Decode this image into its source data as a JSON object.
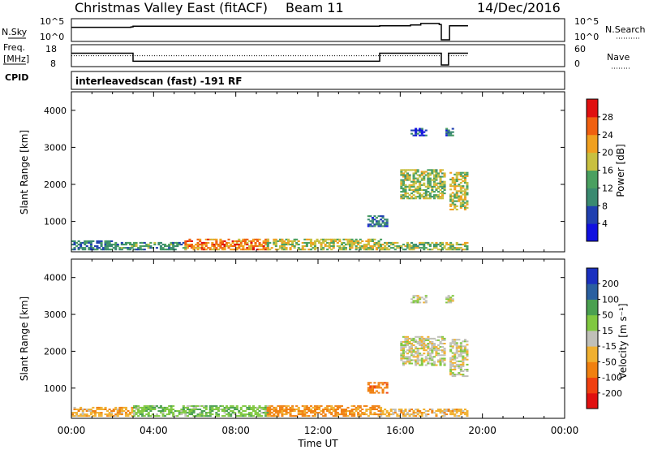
{
  "header": {
    "station": "Christmas Valley East (fitACF)",
    "beam": "Beam 11",
    "date": "14/Dec/2016"
  },
  "panels": {
    "nsky": {
      "label": "N.Sky",
      "left_ticks": [
        "10^5",
        "10^0"
      ],
      "right_ticks": [
        "10^5",
        "10^0"
      ],
      "right_label": "N.Search"
    },
    "freq": {
      "label_line1": "Freq.",
      "label_line2": "[MHz]",
      "left_ticks": [
        "18",
        "8"
      ],
      "right_ticks": [
        "60",
        "0"
      ],
      "right_label": "Nave"
    },
    "cpid": {
      "label": "CPID",
      "text": "interleavedscan (fast) -191 RF"
    }
  },
  "power_panel": {
    "ylabel": "Slant Range [km]",
    "colorbar_label": "Power [dB]"
  },
  "velocity_panel": {
    "ylabel": "Slant Range [km]",
    "colorbar_label": "Velocity [m s⁻¹]"
  },
  "xaxis": {
    "label": "Time UT"
  },
  "chart_data": [
    {
      "type": "line",
      "title": "N.Sky / N.Search",
      "x": [
        0,
        2.9,
        3.0,
        15.0,
        16.5,
        17.0,
        17.9,
        18.0,
        18.3,
        18.4,
        19.3
      ],
      "series": [
        {
          "name": "N.Sky",
          "values": [
            3.2,
            3.3,
            3.5,
            3.6,
            3.8,
            4.2,
            3.9,
            0,
            0,
            3.6,
            3.6
          ]
        },
        {
          "name": "N.Search",
          "values": [
            0,
            0,
            0,
            0,
            0,
            0,
            0,
            0,
            0,
            0,
            0
          ]
        }
      ],
      "ylim": [
        0,
        5
      ],
      "scale": "log10",
      "right_ylim": [
        0,
        5
      ]
    },
    {
      "type": "line",
      "title": "Freq. / Nave",
      "x": [
        0,
        2.95,
        3.0,
        14.95,
        15.0,
        17.95,
        18.0,
        18.3,
        18.35,
        19.3
      ],
      "series": [
        {
          "name": "Freq. [MHz]",
          "values": [
            14.6,
            14.6,
            10.1,
            10.1,
            14.6,
            14.6,
            8,
            8,
            14.6,
            14.6
          ]
        },
        {
          "name": "Nave",
          "values": [
            31,
            31,
            31,
            31,
            31,
            31,
            31,
            31,
            31,
            31
          ]
        }
      ],
      "ylim": [
        8,
        18
      ],
      "right_ylim": [
        0,
        60
      ]
    },
    {
      "type": "heatmap",
      "title": "Power [dB]",
      "xlabel": "Time UT",
      "ylabel": "Slant Range [km]",
      "x_ticks": [
        "00:00",
        "04:00",
        "08:00",
        "12:00",
        "16:00",
        "20:00",
        "00:00"
      ],
      "xlim": [
        0,
        24
      ],
      "y_ticks": [
        1000,
        2000,
        3000,
        4000
      ],
      "ylim": [
        180,
        4500
      ],
      "colorbar_ticks": [
        4,
        8,
        12,
        16,
        20,
        24,
        28
      ],
      "colorbar_range": [
        0,
        32
      ],
      "regions": [
        {
          "t": [
            0.0,
            2.0
          ],
          "r": [
            220,
            480
          ],
          "power": 10
        },
        {
          "t": [
            2.0,
            5.5
          ],
          "r": [
            220,
            420
          ],
          "power": 12
        },
        {
          "t": [
            5.5,
            9.5
          ],
          "r": [
            220,
            520
          ],
          "power": 24
        },
        {
          "t": [
            9.5,
            15.0
          ],
          "r": [
            220,
            500
          ],
          "power": 18
        },
        {
          "t": [
            15.0,
            19.3
          ],
          "r": [
            220,
            420
          ],
          "power": 16
        },
        {
          "t": [
            14.4,
            15.3
          ],
          "r": [
            850,
            1150
          ],
          "power": 8
        },
        {
          "t": [
            16.0,
            18.2
          ],
          "r": [
            1600,
            2400
          ],
          "power": 16
        },
        {
          "t": [
            18.4,
            19.3
          ],
          "r": [
            1300,
            2300
          ],
          "power": 18
        },
        {
          "t": [
            16.5,
            17.3
          ],
          "r": [
            3300,
            3500
          ],
          "power": 6
        },
        {
          "t": [
            18.2,
            18.6
          ],
          "r": [
            3300,
            3500
          ],
          "power": 8
        }
      ]
    },
    {
      "type": "heatmap",
      "title": "Velocity [m s⁻¹]",
      "xlabel": "Time UT",
      "ylabel": "Slant Range [km]",
      "x_ticks": [
        "00:00",
        "04:00",
        "08:00",
        "12:00",
        "16:00",
        "20:00",
        "00:00"
      ],
      "xlim": [
        0,
        24
      ],
      "y_ticks": [
        1000,
        2000,
        3000,
        4000
      ],
      "ylim": [
        180,
        4500
      ],
      "colorbar_ticks": [
        -200,
        -100,
        -50,
        -15,
        15,
        50,
        100,
        200
      ],
      "regions": [
        {
          "t": [
            0.0,
            3.0
          ],
          "r": [
            220,
            480
          ],
          "velocity": -40
        },
        {
          "t": [
            3.0,
            9.5
          ],
          "r": [
            220,
            520
          ],
          "velocity": 40
        },
        {
          "t": [
            9.5,
            15.0
          ],
          "r": [
            220,
            500
          ],
          "velocity": -60
        },
        {
          "t": [
            15.0,
            19.3
          ],
          "r": [
            220,
            420
          ],
          "velocity": -30
        },
        {
          "t": [
            14.4,
            15.3
          ],
          "r": [
            850,
            1150
          ],
          "velocity": -80
        },
        {
          "t": [
            16.0,
            18.2
          ],
          "r": [
            1600,
            2400
          ],
          "velocity": 0
        },
        {
          "t": [
            18.4,
            19.3
          ],
          "r": [
            1300,
            2300
          ],
          "velocity": 0
        },
        {
          "t": [
            16.5,
            17.3
          ],
          "r": [
            3300,
            3500
          ],
          "velocity": 0
        },
        {
          "t": [
            18.2,
            18.6
          ],
          "r": [
            3300,
            3500
          ],
          "velocity": 0
        }
      ]
    }
  ]
}
